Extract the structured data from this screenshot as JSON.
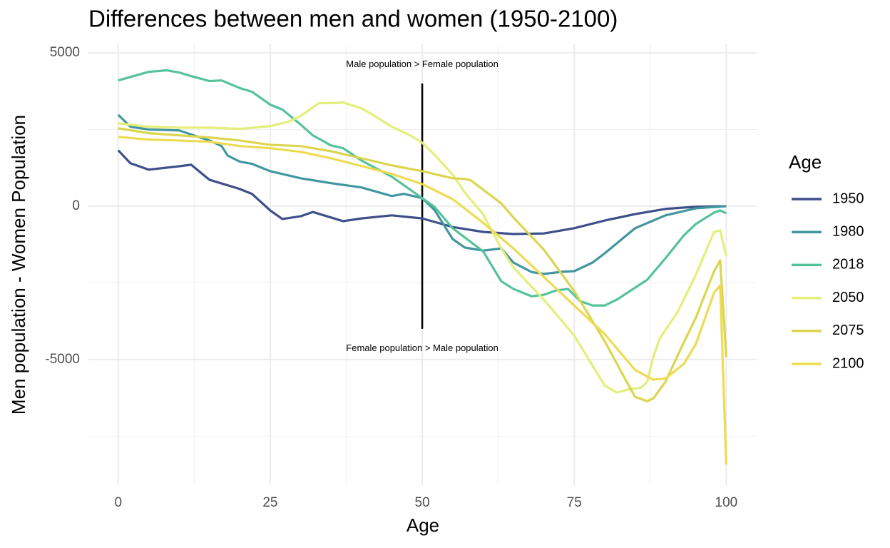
{
  "chart_data": {
    "type": "line",
    "title": "Differences between men and women (1950-2100)",
    "x_label": "Age",
    "y_label": "Men population - Women Population",
    "legend_title": "Age",
    "legend": "right",
    "xlim": [
      -4.9,
      105
    ],
    "ylim": [
      -9100,
      5280
    ],
    "xticks": [
      0,
      25,
      50,
      75,
      100
    ],
    "yticks": [
      -5000,
      0,
      5000
    ],
    "xminor": [
      12.5,
      37.5,
      62.5,
      87.5
    ],
    "yminor": [
      -7500,
      -2500,
      2500
    ],
    "grid": true,
    "annotations": [
      {
        "text": "Male population > Female population",
        "x": 50,
        "y": 4610
      },
      {
        "text": "Female population > Male population",
        "x": 50,
        "y": -4640
      }
    ],
    "segment": {
      "x": 50,
      "y": [
        4000,
        -4000
      ]
    },
    "series": [
      {
        "name": "1950",
        "color": "#3e4f8a",
        "x": [
          0,
          2,
          5,
          10,
          12,
          15,
          18,
          20,
          22,
          25,
          27,
          30,
          32,
          35,
          37,
          40,
          45,
          50,
          55,
          60,
          65,
          70,
          75,
          80,
          85,
          90,
          95,
          100
        ],
        "values": [
          1820,
          1400,
          1190,
          1300,
          1350,
          860,
          680,
          560,
          400,
          -140,
          -420,
          -330,
          -190,
          -370,
          -490,
          -400,
          -300,
          -400,
          -680,
          -840,
          -910,
          -890,
          -720,
          -470,
          -260,
          -90,
          -20,
          0
        ]
      },
      {
        "name": "1980",
        "color": "#41969f",
        "x": [
          0,
          2,
          5,
          10,
          15,
          17,
          18,
          20,
          22,
          25,
          30,
          35,
          40,
          45,
          47,
          50,
          52,
          55,
          57,
          60,
          63,
          65,
          68,
          70,
          73,
          75,
          78,
          80,
          85,
          90,
          95,
          100
        ],
        "values": [
          2980,
          2590,
          2500,
          2470,
          2140,
          1960,
          1650,
          1450,
          1380,
          1140,
          910,
          750,
          610,
          330,
          400,
          260,
          -120,
          -1070,
          -1350,
          -1450,
          -1380,
          -1840,
          -2150,
          -2210,
          -2140,
          -2120,
          -1840,
          -1540,
          -720,
          -300,
          -70,
          0
        ]
      },
      {
        "name": "2018",
        "color": "#55c29a",
        "x": [
          0,
          5,
          8,
          10,
          12,
          15,
          17,
          20,
          22,
          25,
          27,
          30,
          32,
          35,
          37,
          40,
          45,
          50,
          52,
          55,
          60,
          63,
          65,
          68,
          70,
          72,
          74,
          76,
          78,
          80,
          82,
          85,
          87,
          90,
          93,
          95,
          98,
          99,
          100
        ],
        "values": [
          4100,
          4380,
          4430,
          4360,
          4240,
          4080,
          4100,
          3850,
          3730,
          3310,
          3150,
          2660,
          2310,
          1980,
          1890,
          1490,
          960,
          260,
          -20,
          -720,
          -1470,
          -2450,
          -2700,
          -2940,
          -2890,
          -2750,
          -2700,
          -3100,
          -3240,
          -3240,
          -3050,
          -2660,
          -2400,
          -1700,
          -960,
          -580,
          -210,
          -140,
          -230
        ]
      },
      {
        "name": "2050",
        "color": "#e3ef7a",
        "x": [
          0,
          5,
          10,
          15,
          20,
          25,
          28,
          30,
          33,
          35,
          37,
          40,
          42,
          45,
          48,
          50,
          52,
          55,
          57,
          60,
          63,
          65,
          70,
          75,
          78,
          80,
          82,
          84,
          86,
          87,
          88,
          89,
          92,
          95,
          98,
          99,
          100
        ],
        "values": [
          2700,
          2590,
          2560,
          2560,
          2520,
          2610,
          2750,
          2940,
          3360,
          3360,
          3380,
          3190,
          2960,
          2590,
          2310,
          2070,
          1680,
          1030,
          440,
          -260,
          -1380,
          -2000,
          -3050,
          -4220,
          -5200,
          -5850,
          -6080,
          -5970,
          -5920,
          -5730,
          -4920,
          -4340,
          -3450,
          -2240,
          -840,
          -790,
          -1630
        ]
      },
      {
        "name": "2075",
        "color": "#dcd54f",
        "x": [
          0,
          5,
          10,
          15,
          20,
          25,
          30,
          35,
          40,
          45,
          50,
          55,
          57,
          58,
          60,
          63,
          65,
          70,
          75,
          80,
          83,
          85,
          87,
          88,
          90,
          93,
          95,
          98,
          99,
          100
        ],
        "values": [
          2540,
          2380,
          2310,
          2240,
          2140,
          2000,
          1960,
          1790,
          1560,
          1330,
          1140,
          910,
          890,
          840,
          540,
          90,
          -370,
          -1420,
          -2770,
          -4400,
          -5500,
          -6220,
          -6360,
          -6270,
          -5730,
          -4450,
          -3640,
          -2120,
          -1770,
          -4920
        ]
      },
      {
        "name": "2100",
        "color": "#eedb52",
        "x": [
          0,
          5,
          10,
          15,
          20,
          25,
          30,
          35,
          40,
          45,
          50,
          55,
          60,
          65,
          70,
          75,
          80,
          85,
          88,
          90,
          93,
          95,
          98,
          99,
          100
        ],
        "values": [
          2260,
          2170,
          2140,
          2100,
          1960,
          1890,
          1770,
          1560,
          1310,
          1050,
          720,
          230,
          -540,
          -1380,
          -2310,
          -3240,
          -4170,
          -5340,
          -5660,
          -5620,
          -5150,
          -4500,
          -2820,
          -2590,
          -8420
        ]
      }
    ]
  }
}
